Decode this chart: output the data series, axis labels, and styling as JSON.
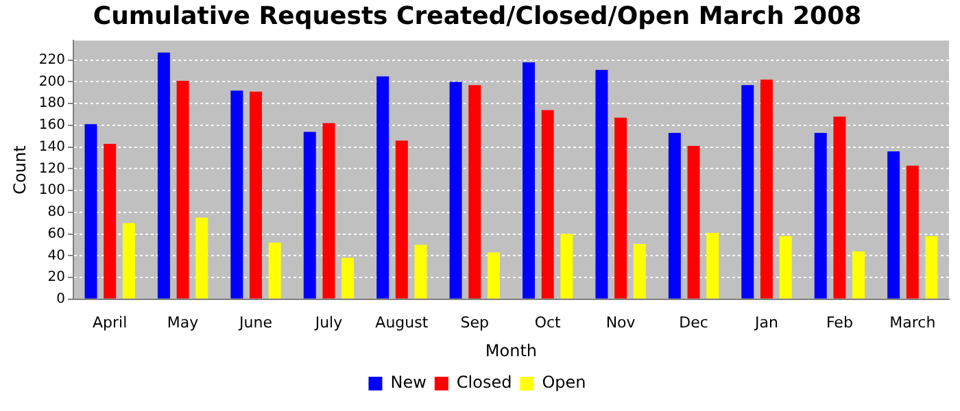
{
  "chart_data": {
    "type": "bar",
    "title": "Cumulative Requests Created/Closed/Open March 2008",
    "xlabel": "Month",
    "ylabel": "Count",
    "categories": [
      "April",
      "May",
      "June",
      "July",
      "August",
      "Sep",
      "Oct",
      "Nov",
      "Dec",
      "Jan",
      "Feb",
      "March"
    ],
    "series": [
      {
        "name": "New",
        "color": "#0000ff",
        "values": [
          161,
          227,
          192,
          154,
          205,
          200,
          218,
          211,
          153,
          197,
          153,
          136
        ]
      },
      {
        "name": "Closed",
        "color": "#ff0000",
        "values": [
          143,
          201,
          191,
          162,
          146,
          197,
          174,
          167,
          141,
          202,
          168,
          123
        ]
      },
      {
        "name": "Open",
        "color": "#ffff00",
        "values": [
          70,
          75,
          52,
          38,
          50,
          43,
          60,
          51,
          61,
          58,
          44,
          58
        ]
      }
    ],
    "ylim": [
      0,
      238
    ],
    "yticks": [
      0,
      20,
      40,
      60,
      80,
      100,
      120,
      140,
      160,
      180,
      200,
      220
    ],
    "grid": "y",
    "legend": "bottom"
  }
}
